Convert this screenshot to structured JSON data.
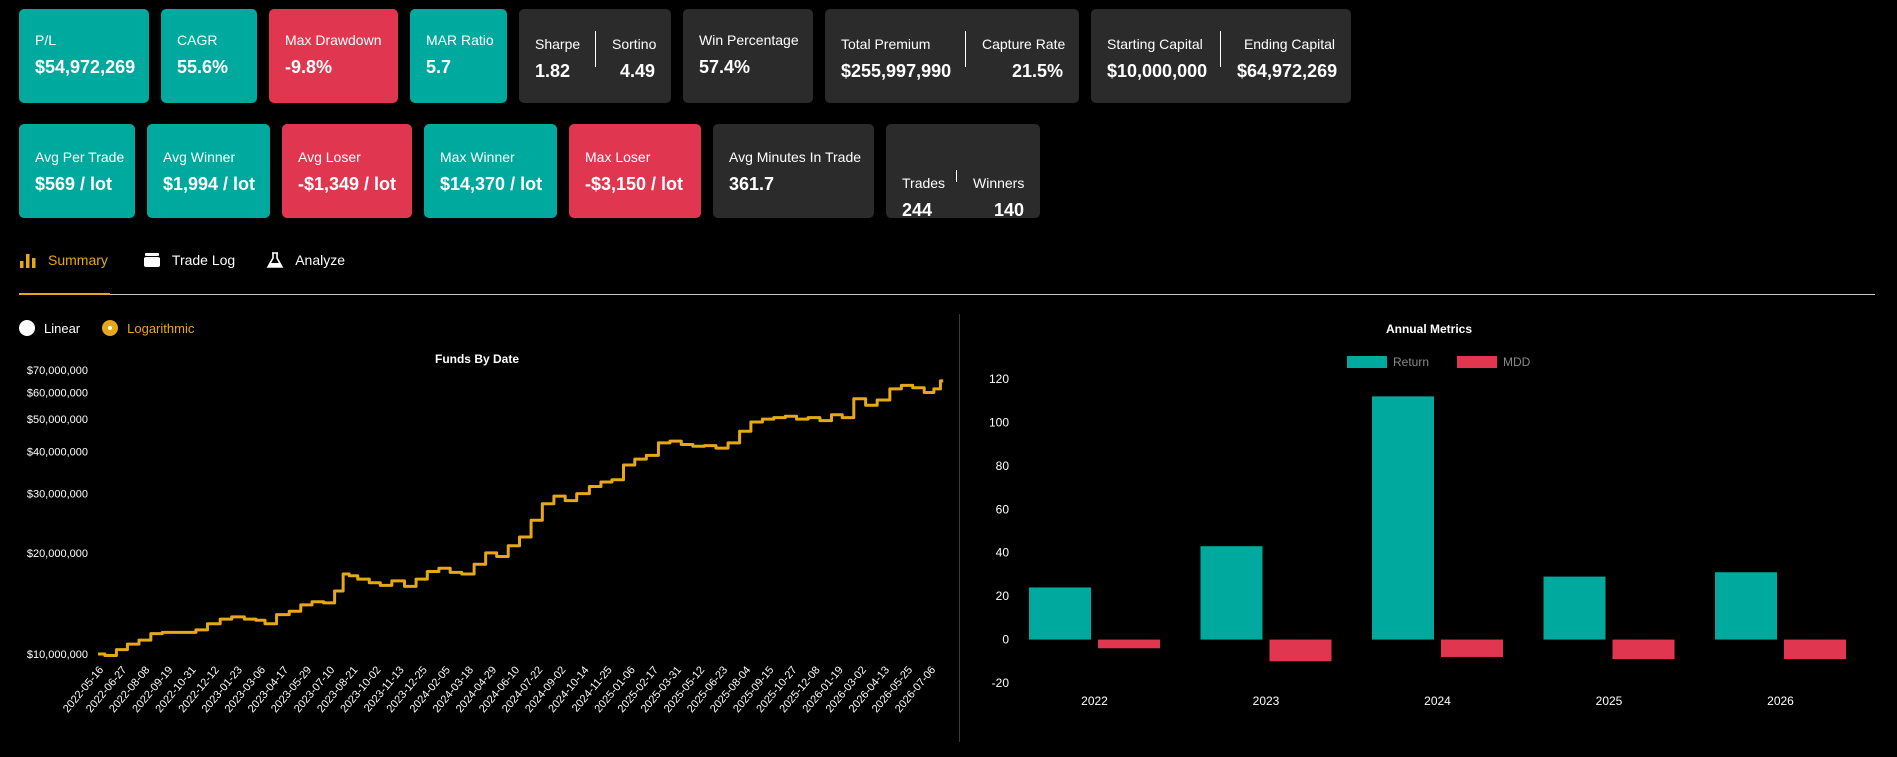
{
  "stats_row1": {
    "pl": {
      "label": "P/L",
      "value": "$54,972,269"
    },
    "cagr": {
      "label": "CAGR",
      "value": "55.6%"
    },
    "max_drawdown": {
      "label": "Max Drawdown",
      "value": "-9.8%"
    },
    "mar_ratio": {
      "label": "MAR Ratio",
      "value": "5.7"
    },
    "sharpe": {
      "label": "Sharpe",
      "value": "1.82"
    },
    "sortino": {
      "label": "Sortino",
      "value": "4.49"
    },
    "win_percentage": {
      "label": "Win Percentage",
      "value": "57.4%"
    },
    "total_premium": {
      "label": "Total Premium",
      "value": "$255,997,990"
    },
    "capture_rate": {
      "label": "Capture Rate",
      "value": "21.5%"
    },
    "starting_capital": {
      "label": "Starting Capital",
      "value": "$10,000,000"
    },
    "ending_capital": {
      "label": "Ending Capital",
      "value": "$64,972,269"
    }
  },
  "stats_row2": {
    "avg_per_trade": {
      "label": "Avg Per Trade",
      "value": "$569 / lot"
    },
    "avg_winner": {
      "label": "Avg Winner",
      "value": "$1,994 / lot"
    },
    "avg_loser": {
      "label": "Avg Loser",
      "value": "-$1,349 / lot"
    },
    "max_winner": {
      "label": "Max Winner",
      "value": "$14,370 / lot"
    },
    "max_loser": {
      "label": "Max Loser",
      "value": "-$3,150 / lot"
    },
    "avg_minutes": {
      "label": "Avg Minutes In Trade",
      "value": "361.7"
    },
    "trades": {
      "label": "Trades",
      "value": "244"
    },
    "winners": {
      "label": "Winners",
      "value": "140"
    }
  },
  "tabs": [
    {
      "label": "Summary",
      "icon": "bar-chart-icon",
      "active": true
    },
    {
      "label": "Trade Log",
      "icon": "stack-icon",
      "active": false
    },
    {
      "label": "Analyze",
      "icon": "flask-icon",
      "active": false
    }
  ],
  "scale_options": {
    "linear": "Linear",
    "logarithmic": "Logarithmic",
    "selected": "Logarithmic"
  },
  "colors": {
    "teal": "#00a99d",
    "red": "#e03650",
    "gold": "#e6a817",
    "card_dark": "#2b2b2b"
  },
  "chart_data": [
    {
      "type": "line",
      "title": "Funds By Date",
      "y_scale": "log",
      "y_ticks": [
        "$10,000,000",
        "$20,000,000",
        "$30,000,000",
        "$40,000,000",
        "$50,000,000",
        "$60,000,000",
        "$70,000,000"
      ],
      "y_tick_values": [
        10000000,
        20000000,
        30000000,
        40000000,
        50000000,
        60000000,
        70000000
      ],
      "x_ticks": [
        "2022-05-16",
        "2022-06-27",
        "2022-08-08",
        "2022-09-19",
        "2022-10-31",
        "2022-12-12",
        "2023-01-23",
        "2023-03-06",
        "2023-04-17",
        "2023-05-29",
        "2023-07-10",
        "2023-08-21",
        "2023-10-02",
        "2023-11-13",
        "2023-12-25",
        "2024-02-05",
        "2024-03-18",
        "2024-04-29",
        "2024-06-10",
        "2024-07-22",
        "2024-09-02",
        "2024-10-14",
        "2024-11-25",
        "2025-01-06",
        "2025-02-17",
        "2025-03-31",
        "2025-05-12",
        "2025-06-23",
        "2025-08-04",
        "2025-09-15",
        "2025-10-27",
        "2025-12-08",
        "2026-01-19",
        "2026-03-02",
        "2026-04-13",
        "2026-05-25",
        "2026-07-06"
      ],
      "series": [
        {
          "color": "#e6a817",
          "points": [
            [
              "2022-05-16",
              10000000
            ],
            [
              "2022-06-10",
              9900000
            ],
            [
              "2022-06-27",
              10300000
            ],
            [
              "2022-07-20",
              10700000
            ],
            [
              "2022-08-08",
              11000000
            ],
            [
              "2022-09-01",
              11500000
            ],
            [
              "2022-09-19",
              11600000
            ],
            [
              "2022-10-31",
              11600000
            ],
            [
              "2022-11-20",
              11800000
            ],
            [
              "2022-12-12",
              12300000
            ],
            [
              "2023-01-05",
              12700000
            ],
            [
              "2023-01-23",
              12900000
            ],
            [
              "2023-02-20",
              12700000
            ],
            [
              "2023-03-06",
              12600000
            ],
            [
              "2023-03-25",
              12300000
            ],
            [
              "2023-04-17",
              13100000
            ],
            [
              "2023-05-10",
              13400000
            ],
            [
              "2023-05-29",
              14000000
            ],
            [
              "2023-06-20",
              14300000
            ],
            [
              "2023-07-10",
              14200000
            ],
            [
              "2023-07-30",
              15400000
            ],
            [
              "2023-08-10",
              17300000
            ],
            [
              "2023-08-21",
              17100000
            ],
            [
              "2023-09-10",
              16700000
            ],
            [
              "2023-10-02",
              16300000
            ],
            [
              "2023-10-20",
              16000000
            ],
            [
              "2023-11-13",
              16500000
            ],
            [
              "2023-12-05",
              15900000
            ],
            [
              "2023-12-25",
              16700000
            ],
            [
              "2024-01-15",
              17600000
            ],
            [
              "2024-02-05",
              18000000
            ],
            [
              "2024-02-25",
              17500000
            ],
            [
              "2024-03-18",
              17300000
            ],
            [
              "2024-04-10",
              18500000
            ],
            [
              "2024-04-29",
              20000000
            ],
            [
              "2024-05-20",
              19500000
            ],
            [
              "2024-06-10",
              21000000
            ],
            [
              "2024-06-30",
              22300000
            ],
            [
              "2024-07-22",
              25000000
            ],
            [
              "2024-08-10",
              28000000
            ],
            [
              "2024-09-02",
              29500000
            ],
            [
              "2024-09-20",
              28600000
            ],
            [
              "2024-10-14",
              30000000
            ],
            [
              "2024-11-05",
              31500000
            ],
            [
              "2024-11-25",
              32500000
            ],
            [
              "2024-12-15",
              33000000
            ],
            [
              "2025-01-06",
              36500000
            ],
            [
              "2025-01-25",
              38000000
            ],
            [
              "2025-02-17",
              39000000
            ],
            [
              "2025-03-10",
              42500000
            ],
            [
              "2025-03-31",
              43000000
            ],
            [
              "2025-04-20",
              42000000
            ],
            [
              "2025-05-12",
              41500000
            ],
            [
              "2025-06-01",
              41700000
            ],
            [
              "2025-06-23",
              41000000
            ],
            [
              "2025-07-15",
              42500000
            ],
            [
              "2025-08-04",
              46000000
            ],
            [
              "2025-08-25",
              49000000
            ],
            [
              "2025-09-15",
              50000000
            ],
            [
              "2025-10-05",
              50500000
            ],
            [
              "2025-10-27",
              51000000
            ],
            [
              "2025-11-15",
              50000000
            ],
            [
              "2025-12-08",
              50500000
            ],
            [
              "2025-12-28",
              49500000
            ],
            [
              "2026-01-19",
              51500000
            ],
            [
              "2026-02-05",
              50500000
            ],
            [
              "2026-03-02",
              57500000
            ],
            [
              "2026-03-20",
              55000000
            ],
            [
              "2026-04-13",
              57000000
            ],
            [
              "2026-05-05",
              61500000
            ],
            [
              "2026-05-25",
              63000000
            ],
            [
              "2026-06-15",
              62000000
            ],
            [
              "2026-07-06",
              60000000
            ],
            [
              "2026-07-20",
              61500000
            ],
            [
              "2026-07-30",
              65000000
            ]
          ]
        }
      ]
    },
    {
      "type": "bar",
      "title": "Annual Metrics",
      "categories": [
        "2022",
        "2023",
        "2024",
        "2025",
        "2026"
      ],
      "series": [
        {
          "name": "Return",
          "color": "#00a99d",
          "values": [
            24,
            43,
            112,
            29,
            31
          ]
        },
        {
          "name": "MDD",
          "color": "#e03650",
          "values": [
            -4,
            -10,
            -8,
            -9,
            -9
          ]
        }
      ],
      "y_ticks": [
        -20,
        0,
        20,
        40,
        60,
        80,
        100,
        120
      ],
      "ylim": [
        -20,
        120
      ],
      "legend": "top"
    }
  ]
}
